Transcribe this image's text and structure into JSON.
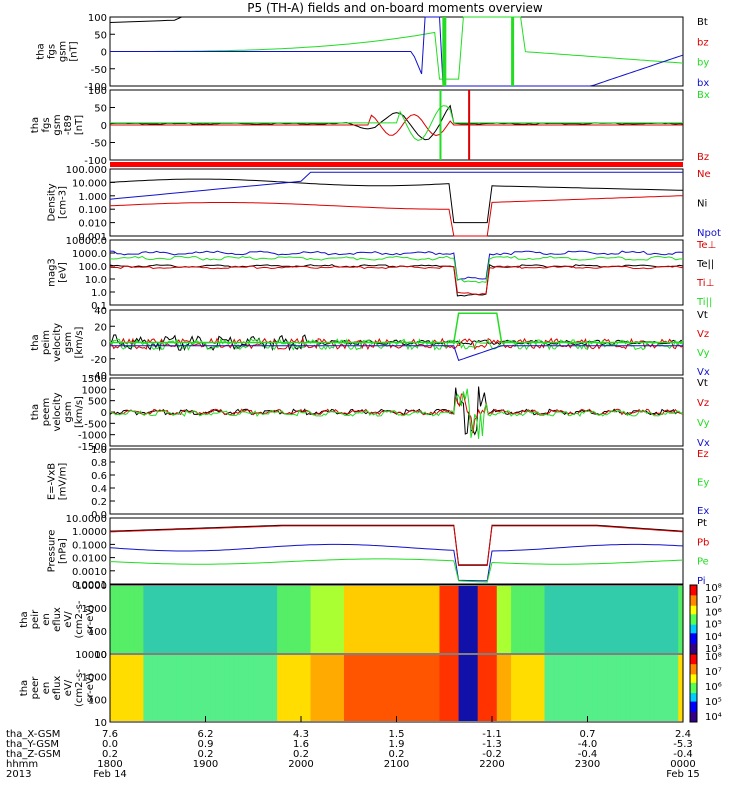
{
  "title": "P5 (TH-A) fields and on-board moments overview",
  "colors": {
    "black": "#000000",
    "red": "#dd0000",
    "green": "#22dd22",
    "blue": "#1111cc"
  },
  "panels": [
    {
      "id": "fgs",
      "ylabel_lines": [
        "tha",
        "fgs",
        "gsm",
        "[nT]"
      ],
      "ticks": [
        "100",
        "50",
        "0",
        "-50",
        "-100"
      ],
      "legend": [
        {
          "text": "Bt",
          "color": "#000000"
        },
        {
          "text": "bz",
          "color": "#dd0000"
        },
        {
          "text": "by",
          "color": "#22dd22"
        },
        {
          "text": "bx",
          "color": "#1111cc"
        }
      ]
    },
    {
      "id": "fgs2",
      "ylabel_lines": [
        "tha",
        "fgs",
        "gsm",
        "-t89",
        "[nT]"
      ],
      "ticks": [
        "100",
        "50",
        "0",
        "-50",
        "-100"
      ],
      "legend": [
        {
          "text": "Bx",
          "color": "#22dd22"
        },
        {
          "text": "Bz",
          "color": "#dd0000"
        }
      ]
    },
    {
      "id": "density",
      "ylabel_lines": [
        "Density",
        "[cm-3]"
      ],
      "ticks": [
        "100.000",
        "10.000",
        "1.000",
        "0.100",
        "0.010",
        "0.001"
      ],
      "legend": [
        {
          "text": "Ne",
          "color": "#dd0000"
        },
        {
          "text": "Ni",
          "color": "#000000"
        },
        {
          "text": "Npot",
          "color": "#1111cc"
        }
      ]
    },
    {
      "id": "temp",
      "ylabel_lines": [
        "mag3",
        "[eV]"
      ],
      "ticks": [
        "10000.0",
        "1000.0",
        "100.0",
        "10.0",
        "1.0",
        "0.1"
      ],
      "legend": [
        {
          "text": "Te⊥",
          "color": "#dd0000"
        },
        {
          "text": "Te||",
          "color": "#000000"
        },
        {
          "text": "Ti⊥",
          "color": "#dd0000"
        },
        {
          "text": "Ti||",
          "color": "#22dd22"
        }
      ]
    },
    {
      "id": "vi",
      "ylabel_lines": [
        "tha",
        "peim",
        "velocity",
        "gsm",
        "[km/s]"
      ],
      "ticks": [
        "40",
        "20",
        "0",
        "-20",
        "-40"
      ],
      "legend": [
        {
          "text": "Vt",
          "color": "#000000"
        },
        {
          "text": "Vz",
          "color": "#dd0000"
        },
        {
          "text": "Vy",
          "color": "#22dd22"
        },
        {
          "text": "Vx",
          "color": "#1111cc"
        }
      ]
    },
    {
      "id": "ve",
      "ylabel_lines": [
        "tha",
        "peem",
        "velocity",
        "gsm",
        "[km/s]"
      ],
      "ticks": [
        "1500",
        "1000",
        "500",
        "0",
        "-500",
        "-1000",
        "-1500"
      ],
      "legend": [
        {
          "text": "Vt",
          "color": "#000000"
        },
        {
          "text": "Vz",
          "color": "#dd0000"
        },
        {
          "text": "Vy",
          "color": "#22dd22"
        },
        {
          "text": "Vx",
          "color": "#1111cc"
        }
      ]
    },
    {
      "id": "efield",
      "ylabel_lines": [
        "E=-VxB",
        "[mV/m]"
      ],
      "ticks": [
        "1.0",
        "0.8",
        "0.6",
        "0.4",
        "0.2",
        "0.0"
      ],
      "legend": [
        {
          "text": "Ez",
          "color": "#dd0000"
        },
        {
          "text": "Ey",
          "color": "#22dd22"
        },
        {
          "text": "Ex",
          "color": "#1111cc"
        }
      ]
    },
    {
      "id": "pressure",
      "ylabel_lines": [
        "Pressure",
        "[nPa]"
      ],
      "ticks": [
        "10.0000",
        "1.0000",
        "0.1000",
        "0.0100",
        "0.0010",
        "0.0001"
      ],
      "legend": [
        {
          "text": "Pt",
          "color": "#000000"
        },
        {
          "text": "Pb",
          "color": "#dd0000"
        },
        {
          "text": "Pe",
          "color": "#22dd22"
        },
        {
          "text": "Pi",
          "color": "#1111cc"
        }
      ]
    },
    {
      "id": "peir",
      "ylabel_lines": [
        "tha",
        "peir",
        "en",
        "eflux",
        "eV/",
        "(cm2-s-",
        "sr-eV)"
      ],
      "ticks": [
        "10000",
        "1000",
        "100",
        "10"
      ],
      "colorbar": [
        "10⁸",
        "10⁷",
        "10⁶",
        "10⁵",
        "10⁴",
        "10³"
      ]
    },
    {
      "id": "peer",
      "ylabel_lines": [
        "tha",
        "peer",
        "en",
        "eflux",
        "eV/",
        "(cm2-s-",
        "sr-eV)"
      ],
      "ticks": [
        "10000",
        "1000",
        "100",
        "10"
      ],
      "colorbar": [
        "10⁸",
        "10⁷",
        "10⁶",
        "10⁵",
        "10⁴"
      ]
    }
  ],
  "axis": {
    "rows": [
      {
        "label": "tha_X-GSM",
        "values": [
          "7.6",
          "6.2",
          "4.3",
          "1.5",
          "-1.1",
          "0.7",
          "2.4"
        ]
      },
      {
        "label": "tha_Y-GSM",
        "values": [
          "0.0",
          "0.9",
          "1.6",
          "1.9",
          "-1.3",
          "-4.0",
          "-5.3"
        ]
      },
      {
        "label": "tha_Z-GSM",
        "values": [
          "0.2",
          "0.2",
          "0.2",
          "0.2",
          "-0.2",
          "-0.4",
          "-0.4"
        ]
      },
      {
        "label": "hhmm",
        "values": [
          "1800",
          "1900",
          "2000",
          "2100",
          "2200",
          "2300",
          "0000"
        ]
      }
    ],
    "year": "2013",
    "date_start": "Feb 14",
    "date_end": "Feb 15"
  },
  "chart_data": {
    "type": "line",
    "title": "P5 (TH-A) fields and on-board moments overview",
    "x": [
      "1800",
      "1900",
      "2000",
      "2100",
      "2200",
      "2300",
      "0000"
    ],
    "series": [
      {
        "name": "Bt",
        "panel": "fgs",
        "values": [
          95,
          101,
          101,
          101,
          101,
          101,
          101
        ]
      },
      {
        "name": "by",
        "panel": "fgs",
        "values": [
          0,
          10,
          30,
          45,
          101,
          -100,
          -80
        ]
      },
      {
        "name": "bx",
        "panel": "fgs",
        "values": [
          0,
          0,
          0,
          -20,
          101,
          -100,
          -20
        ]
      },
      {
        "name": "Ni",
        "panel": "density",
        "values": [
          10,
          30,
          12,
          10,
          0.2,
          3,
          1
        ]
      },
      {
        "name": "Ne",
        "panel": "density",
        "values": [
          0.3,
          0.3,
          0.4,
          0.3,
          0.002,
          0.5,
          0.8
        ]
      },
      {
        "name": "Pt",
        "panel": "pressure",
        "values": [
          3,
          10,
          12,
          12,
          0.04,
          10,
          8
        ]
      },
      {
        "name": "Pi",
        "panel": "pressure",
        "values": [
          0.5,
          0.3,
          0.1,
          0.2,
          0.003,
          0.06,
          0.2
        ]
      }
    ]
  }
}
